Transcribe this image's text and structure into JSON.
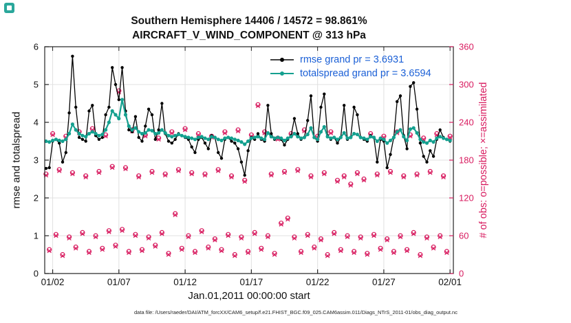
{
  "figure": {
    "caption": "data file: /Users/raeder/DAI/ATM_forcXX/CAM6_setup/f.e21.FHIST_BGC.f09_025.CAM6assim.011/Diags_NTrS_2011-01/obs_diag_output.nc"
  },
  "chart_data": {
    "type": "line",
    "title_line1": "Southern Hemisphere 14406 / 14572 = 98.861%",
    "title_line2": "AIRCRAFT_V_WIND_COMPONENT @ 313 hPa",
    "xlabel": "Jan.01,2011 00:00:00 start",
    "ylabel_left": "rmse and totalspread",
    "ylabel_right": "# of obs: o=possible; ×=assimilated",
    "ylim_left": [
      0,
      6
    ],
    "ylim_right": [
      0,
      360
    ],
    "yticks_left": [
      0,
      1,
      2,
      3,
      4,
      5,
      6
    ],
    "yticks_right": [
      0,
      60,
      120,
      180,
      240,
      300,
      360
    ],
    "xlim": [
      0.4,
      31.25
    ],
    "xticks": [
      1,
      6,
      11,
      16,
      21,
      26,
      31
    ],
    "xtick_labels": [
      "01/02",
      "01/07",
      "01/12",
      "01/17",
      "01/22",
      "01/27",
      "02/01"
    ],
    "grid": true,
    "legend_position": "top-center-inside",
    "legend": [
      {
        "label": "rmse grand pr = 3.6931",
        "color": "#000000"
      },
      {
        "label": "totalspread grand pr = 3.6594",
        "color": "#14a08f"
      }
    ],
    "colors": {
      "rmse": "#000000",
      "totalspread": "#14a08f",
      "obs": "#d81b5f",
      "legend_text": "#1a5fd6",
      "axis": "#222222",
      "grid": "#e0e0e0",
      "app_icon": "#2aa79b"
    },
    "x_start": 0.5,
    "x_step": 0.25,
    "rmse": [
      2.78,
      2.8,
      3.5,
      3.55,
      3.45,
      2.95,
      3.2,
      4.25,
      5.75,
      4.4,
      3.6,
      3.55,
      3.5,
      4.3,
      4.45,
      3.65,
      3.55,
      3.6,
      4.2,
      4.4,
      5.45,
      5.0,
      4.6,
      5.45,
      4.3,
      3.8,
      3.75,
      4.15,
      3.6,
      3.5,
      3.9,
      4.35,
      4.2,
      3.55,
      3.8,
      4.5,
      3.7,
      3.5,
      3.45,
      3.55,
      3.7,
      3.65,
      3.6,
      3.55,
      3.35,
      3.2,
      3.55,
      3.6,
      3.45,
      3.3,
      3.65,
      3.6,
      3.2,
      3.05,
      3.55,
      3.6,
      3.5,
      3.45,
      3.3,
      2.95,
      2.6,
      3.25,
      3.6,
      3.55,
      3.7,
      3.55,
      3.5,
      4.45,
      3.7,
      3.55,
      3.6,
      3.55,
      3.4,
      3.55,
      3.65,
      4.1,
      3.7,
      3.55,
      3.6,
      4.05,
      4.7,
      3.6,
      3.5,
      4.4,
      4.75,
      3.65,
      3.55,
      3.6,
      3.45,
      3.6,
      4.45,
      3.55,
      3.6,
      4.4,
      4.2,
      3.6,
      3.55,
      3.5,
      3.65,
      3.6,
      2.95,
      3.55,
      3.5,
      2.8,
      3.15,
      3.6,
      4.55,
      4.7,
      3.65,
      3.3,
      4.95,
      5.05,
      4.35,
      3.45,
      3.1,
      2.95,
      3.25,
      3.1,
      3.55,
      3.8,
      3.6,
      3.55,
      3.5
    ],
    "totalspread": [
      3.5,
      3.48,
      3.52,
      3.55,
      3.52,
      3.5,
      3.55,
      3.7,
      3.95,
      3.8,
      3.7,
      3.65,
      3.62,
      3.7,
      3.75,
      3.7,
      3.65,
      3.68,
      3.8,
      4.0,
      4.3,
      4.2,
      4.1,
      4.6,
      4.2,
      3.9,
      3.8,
      3.85,
      3.75,
      3.7,
      3.72,
      3.8,
      3.78,
      3.7,
      3.72,
      3.8,
      3.72,
      3.65,
      3.62,
      3.65,
      3.68,
      3.65,
      3.62,
      3.6,
      3.58,
      3.55,
      3.6,
      3.62,
      3.58,
      3.55,
      3.62,
      3.6,
      3.55,
      3.52,
      3.58,
      3.6,
      3.58,
      3.55,
      3.52,
      3.48,
      3.42,
      3.5,
      3.58,
      3.6,
      3.62,
      3.58,
      3.55,
      3.72,
      3.62,
      3.58,
      3.6,
      3.58,
      3.52,
      3.58,
      3.62,
      3.7,
      3.62,
      3.58,
      3.6,
      3.68,
      3.85,
      3.6,
      3.55,
      3.75,
      3.88,
      3.62,
      3.58,
      3.6,
      3.55,
      3.6,
      3.72,
      3.58,
      3.6,
      3.7,
      3.68,
      3.6,
      3.58,
      3.55,
      3.62,
      3.6,
      3.5,
      3.58,
      3.55,
      3.45,
      3.52,
      3.6,
      3.75,
      3.8,
      3.62,
      3.52,
      3.82,
      3.85,
      3.72,
      3.55,
      3.48,
      3.45,
      3.52,
      3.48,
      3.58,
      3.62,
      3.58,
      3.55,
      3.52
    ],
    "obs_possible": [
      158,
      38,
      222,
      62,
      165,
      30,
      218,
      58,
      160,
      42,
      225,
      65,
      155,
      35,
      230,
      60,
      162,
      40,
      220,
      68,
      170,
      45,
      290,
      70,
      168,
      35,
      228,
      62,
      155,
      38,
      220,
      58,
      162,
      45,
      215,
      65,
      158,
      32,
      225,
      95,
      165,
      40,
      230,
      60,
      160,
      35,
      222,
      68,
      158,
      42,
      218,
      55,
      165,
      38,
      225,
      62,
      155,
      30,
      228,
      58,
      148,
      35,
      220,
      65,
      268,
      40,
      225,
      60,
      158,
      32,
      215,
      80,
      162,
      88,
      222,
      58,
      165,
      35,
      228,
      62,
      155,
      42,
      218,
      55,
      160,
      30,
      225,
      65,
      148,
      38,
      155,
      60,
      142,
      35,
      160,
      58,
      150,
      32,
      222,
      62,
      158,
      40,
      218,
      55,
      162,
      35,
      225,
      60,
      155,
      38,
      220,
      65,
      158,
      30,
      215,
      58,
      162,
      42,
      222,
      60,
      155,
      35,
      218
    ],
    "obs_assimilated": [
      156,
      36,
      220,
      60,
      163,
      28,
      216,
      56,
      158,
      40,
      223,
      63,
      153,
      33,
      228,
      58,
      160,
      38,
      218,
      66,
      168,
      43,
      288,
      68,
      166,
      33,
      226,
      60,
      153,
      36,
      218,
      56,
      160,
      43,
      213,
      63,
      156,
      30,
      223,
      93,
      163,
      38,
      228,
      58,
      158,
      33,
      220,
      66,
      156,
      40,
      216,
      53,
      163,
      36,
      223,
      60,
      153,
      28,
      226,
      56,
      146,
      33,
      218,
      63,
      266,
      38,
      223,
      58,
      156,
      30,
      213,
      78,
      160,
      86,
      220,
      56,
      163,
      33,
      226,
      60,
      153,
      40,
      216,
      53,
      158,
      28,
      223,
      63,
      146,
      36,
      153,
      58,
      140,
      33,
      158,
      56,
      148,
      30,
      220,
      60,
      156,
      38,
      216,
      53,
      160,
      33,
      223,
      58,
      153,
      36,
      218,
      63,
      156,
      28,
      213,
      56,
      160,
      40,
      220,
      58,
      153,
      33,
      216
    ]
  }
}
